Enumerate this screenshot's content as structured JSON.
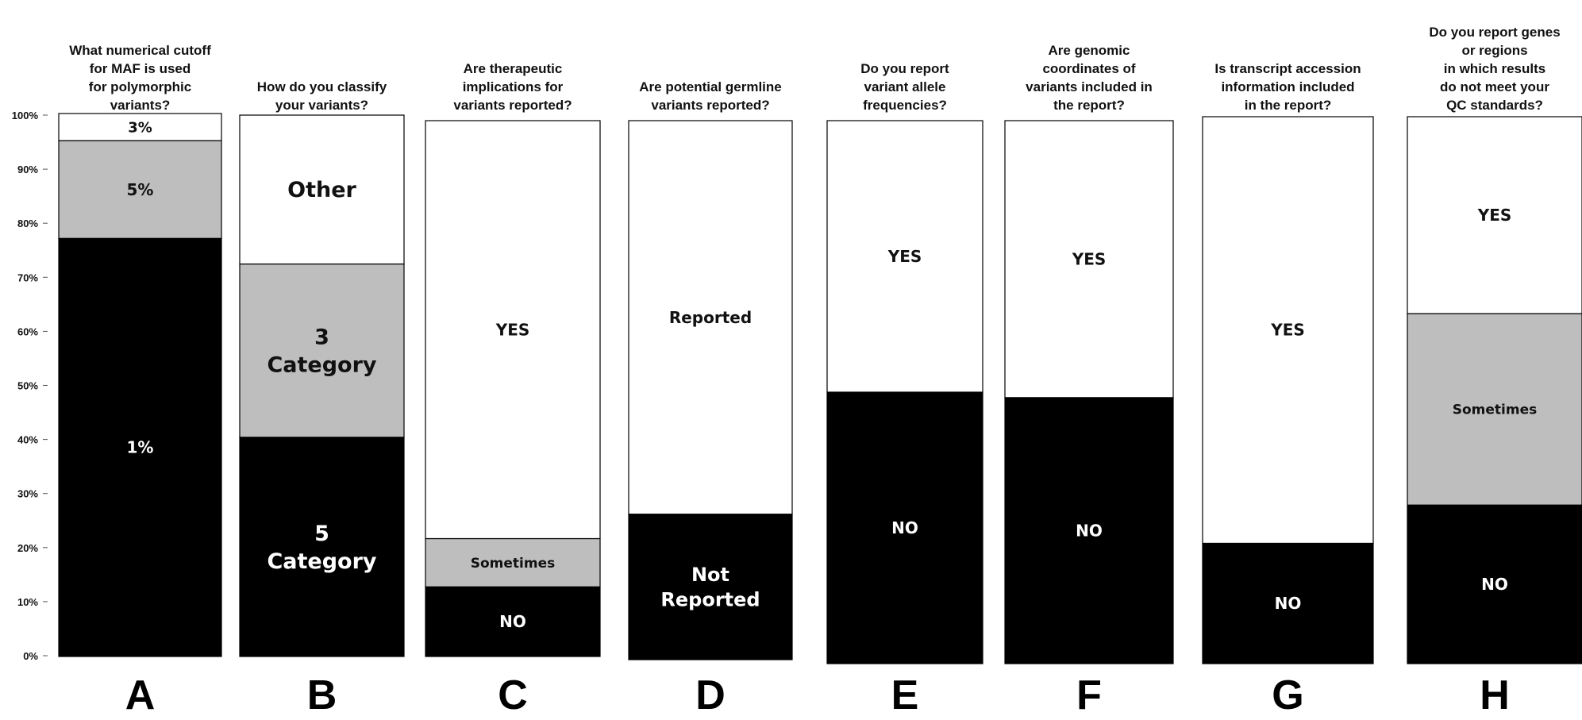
{
  "chart_data": {
    "type": "bar",
    "stacked": true,
    "ylim": [
      0,
      100
    ],
    "y_tick_labels": [
      "0%",
      "10%",
      "20%",
      "30%",
      "40%",
      "50%",
      "60%",
      "70%",
      "80%",
      "90%",
      "100%"
    ],
    "colors": {
      "black": "#000000",
      "gray": "#bebebe",
      "white": "#ffffff",
      "text_dark": "#111111",
      "text_light": "#ffffff"
    },
    "panels": [
      {
        "letter": "A",
        "question": [
          "What numerical cutoff",
          "for MAF is used",
          "for polymorphic",
          "variants?"
        ],
        "segments": [
          {
            "label": [
              "1%"
            ],
            "value": 77,
            "color": "black"
          },
          {
            "label": [
              "5%"
            ],
            "value": 18,
            "color": "gray"
          },
          {
            "label": [
              "3%"
            ],
            "value": 5,
            "color": "white"
          }
        ]
      },
      {
        "letter": "B",
        "question": [
          "How do you classify",
          "your variants?"
        ],
        "segments": [
          {
            "label": [
              "5",
              "Category"
            ],
            "value": 40.5,
            "color": "black"
          },
          {
            "label": [
              "3",
              "Category"
            ],
            "value": 32,
            "color": "gray"
          },
          {
            "label": [
              "Other"
            ],
            "value": 27.5,
            "color": "white"
          }
        ]
      },
      {
        "letter": "C",
        "question": [
          "Are therapeutic",
          "implications for",
          "variants reported?"
        ],
        "segments": [
          {
            "label": [
              "NO"
            ],
            "value": 13,
            "color": "black"
          },
          {
            "label": [
              "Sometimes"
            ],
            "value": 9,
            "color": "gray"
          },
          {
            "label": [
              "YES"
            ],
            "value": 78,
            "color": "white"
          }
        ]
      },
      {
        "letter": "D",
        "question": [
          "Are potential germline",
          "variants reported?"
        ],
        "segments": [
          {
            "label": [
              "Not",
              "Reported"
            ],
            "value": 27,
            "color": "black"
          },
          {
            "label": [
              "Reported"
            ],
            "value": 73,
            "color": "white"
          }
        ]
      },
      {
        "letter": "E",
        "question": [
          "Do you report",
          "variant allele",
          "frequencies?"
        ],
        "segments": [
          {
            "label": [
              "NO"
            ],
            "value": 50,
            "color": "black"
          },
          {
            "label": [
              "YES"
            ],
            "value": 50,
            "color": "white"
          }
        ]
      },
      {
        "letter": "F",
        "question": [
          "Are genomic",
          "coordinates of",
          "variants included in",
          "the report?"
        ],
        "segments": [
          {
            "label": [
              "NO"
            ],
            "value": 49,
            "color": "black"
          },
          {
            "label": [
              "YES"
            ],
            "value": 51,
            "color": "white"
          }
        ]
      },
      {
        "letter": "G",
        "question": [
          "Is transcript accession",
          "information included",
          "in the report?"
        ],
        "segments": [
          {
            "label": [
              "NO"
            ],
            "value": 22,
            "color": "black"
          },
          {
            "label": [
              "YES"
            ],
            "value": 78,
            "color": "white"
          }
        ]
      },
      {
        "letter": "H",
        "question": [
          "Do you report genes",
          "or regions",
          "in which results",
          "do not meet your",
          "QC standards?"
        ],
        "segments": [
          {
            "label": [
              "NO"
            ],
            "value": 29,
            "color": "black"
          },
          {
            "label": [
              "Sometimes"
            ],
            "value": 35,
            "color": "gray"
          },
          {
            "label": [
              "YES"
            ],
            "value": 36,
            "color": "white"
          }
        ]
      }
    ]
  }
}
